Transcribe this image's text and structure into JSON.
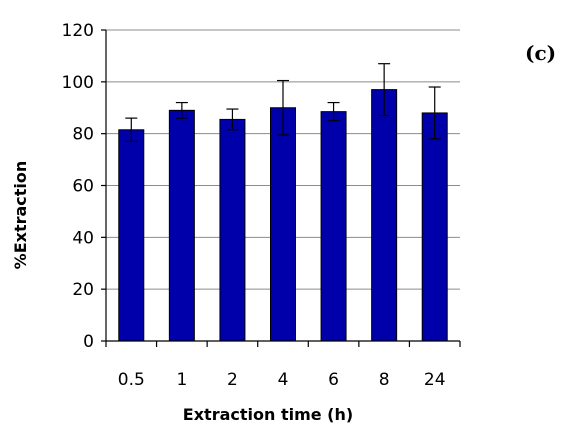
{
  "chart_data": {
    "type": "bar",
    "panel_label": "(c)",
    "xlabel": "Extraction time (h)",
    "ylabel": "%Extraction",
    "categories": [
      "0.5",
      "1",
      "2",
      "4",
      "6",
      "8",
      "24"
    ],
    "values": [
      81.5,
      89,
      85.5,
      90,
      88.5,
      97,
      88
    ],
    "errors": [
      4.5,
      3,
      4,
      10.5,
      3.5,
      10,
      10
    ],
    "ylim": [
      0,
      120
    ],
    "yticks": [
      0,
      20,
      40,
      60,
      80,
      100,
      120
    ],
    "grid": true,
    "bar_color": "#0000aa",
    "bar_edge_color": "#000000",
    "grid_color": "#8c8c8c"
  }
}
